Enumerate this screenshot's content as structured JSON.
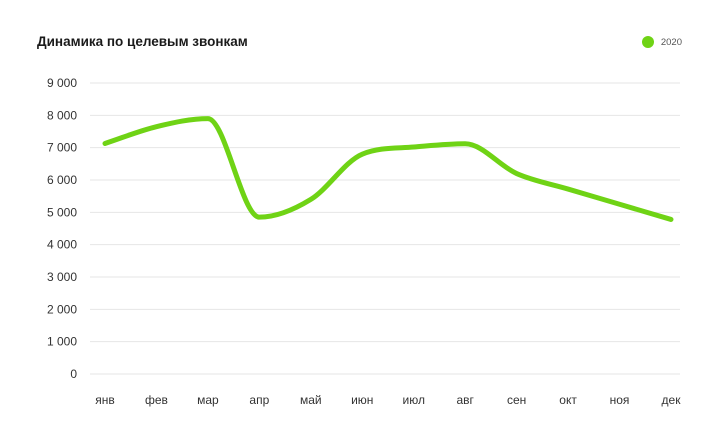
{
  "chart_data": {
    "type": "line",
    "title": "Динамика по целевым звонкам",
    "xlabel": "",
    "ylabel": "",
    "categories": [
      "янв",
      "фев",
      "мар",
      "апр",
      "май",
      "июн",
      "июл",
      "авг",
      "сен",
      "окт",
      "ноя",
      "дек"
    ],
    "y_ticks": [
      "0",
      "1 000",
      "2 000",
      "3 000",
      "4 000",
      "5 000",
      "6 000",
      "7 000",
      "8 000",
      "9 000"
    ],
    "y_tick_values": [
      0,
      1000,
      2000,
      3000,
      4000,
      5000,
      6000,
      7000,
      8000,
      9000
    ],
    "ylim": [
      0,
      9000
    ],
    "grid": true,
    "legend_position": "top-right",
    "series": [
      {
        "name": "2020",
        "color": "#6fd315",
        "values": [
          7130,
          7650,
          7900,
          4850,
          5400,
          6800,
          7020,
          7120,
          6200,
          5720,
          5250,
          4780
        ]
      }
    ]
  }
}
